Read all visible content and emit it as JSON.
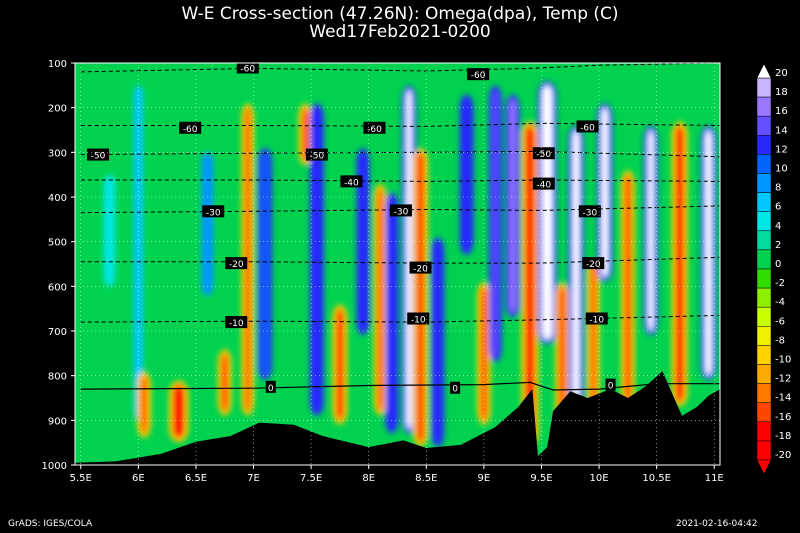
{
  "chart_data": {
    "type": "heatmap",
    "title": "W-E Cross-section (47.26N): Omega(dpa), Temp (C)",
    "subtitle": "Wed17Feb2021-0200",
    "x_ticks": [
      "5.5E",
      "6E",
      "6.5E",
      "7E",
      "7.5E",
      "8E",
      "8.5E",
      "9E",
      "9.5E",
      "10E",
      "10.5E",
      "11E"
    ],
    "x_values": [
      5.5,
      6,
      6.5,
      7,
      7.5,
      8,
      8.5,
      9,
      9.5,
      10,
      10.5,
      11
    ],
    "xlim": [
      5.45,
      11.05
    ],
    "y_ticks": [
      "100",
      "200",
      "300",
      "400",
      "500",
      "600",
      "700",
      "800",
      "900",
      "1000"
    ],
    "ylim": [
      100,
      1000
    ],
    "colorbar_levels": [
      "20",
      "18",
      "16",
      "14",
      "12",
      "10",
      "8",
      "6",
      "4",
      "2",
      "0",
      "-2",
      "-4",
      "-6",
      "-8",
      "-10",
      "-12",
      "-14",
      "-16",
      "-18",
      "-20"
    ],
    "colorbar_colors": [
      "#ffffff",
      "#c8b4ff",
      "#9b78ff",
      "#6450ff",
      "#2828ff",
      "#0064ff",
      "#0096ff",
      "#00c8ff",
      "#00e6e6",
      "#00dca0",
      "#00d250",
      "#32dc00",
      "#8cf000",
      "#c8ff00",
      "#f0f000",
      "#ffd200",
      "#ffaa00",
      "#ff7800",
      "#ff4600",
      "#ff0000",
      "#ff0000"
    ],
    "omega_bands": [
      {
        "lon": 5.75,
        "w": 0.1,
        "ptop": 350,
        "pbot": 600,
        "val": 4
      },
      {
        "lon": 6.0,
        "w": 0.08,
        "ptop": 150,
        "pbot": 900,
        "val": 6
      },
      {
        "lon": 6.05,
        "w": 0.05,
        "ptop": 800,
        "pbot": 930,
        "val": -16
      },
      {
        "lon": 6.35,
        "w": 0.1,
        "ptop": 820,
        "pbot": 940,
        "val": -18
      },
      {
        "lon": 6.6,
        "w": 0.1,
        "ptop": 300,
        "pbot": 620,
        "val": 8
      },
      {
        "lon": 6.75,
        "w": 0.05,
        "ptop": 750,
        "pbot": 880,
        "val": -18
      },
      {
        "lon": 6.95,
        "w": 0.04,
        "ptop": 200,
        "pbot": 880,
        "val": -18
      },
      {
        "lon": 7.1,
        "w": 0.05,
        "ptop": 300,
        "pbot": 800,
        "val": 10
      },
      {
        "lon": 7.45,
        "w": 0.05,
        "ptop": 200,
        "pbot": 320,
        "val": -18
      },
      {
        "lon": 7.55,
        "w": 0.05,
        "ptop": 200,
        "pbot": 880,
        "val": 12
      },
      {
        "lon": 7.75,
        "w": 0.06,
        "ptop": 650,
        "pbot": 900,
        "val": -18
      },
      {
        "lon": 7.95,
        "w": 0.04,
        "ptop": 300,
        "pbot": 700,
        "val": 12
      },
      {
        "lon": 8.1,
        "w": 0.04,
        "ptop": 380,
        "pbot": 880,
        "val": -20
      },
      {
        "lon": 8.2,
        "w": 0.04,
        "ptop": 400,
        "pbot": 920,
        "val": 12
      },
      {
        "lon": 8.35,
        "w": 0.05,
        "ptop": 160,
        "pbot": 920,
        "val": 20
      },
      {
        "lon": 8.45,
        "w": 0.06,
        "ptop": 300,
        "pbot": 950,
        "val": -20
      },
      {
        "lon": 8.6,
        "w": 0.04,
        "ptop": 500,
        "pbot": 950,
        "val": 12
      },
      {
        "lon": 8.85,
        "w": 0.05,
        "ptop": 180,
        "pbot": 520,
        "val": 12
      },
      {
        "lon": 9.0,
        "w": 0.05,
        "ptop": 600,
        "pbot": 900,
        "val": -18
      },
      {
        "lon": 9.1,
        "w": 0.04,
        "ptop": 160,
        "pbot": 760,
        "val": 14
      },
      {
        "lon": 9.25,
        "w": 0.05,
        "ptop": 180,
        "pbot": 660,
        "val": 16
      },
      {
        "lon": 9.4,
        "w": 0.08,
        "ptop": 240,
        "pbot": 950,
        "val": -20
      },
      {
        "lon": 9.55,
        "w": 0.09,
        "ptop": 150,
        "pbot": 720,
        "val": 20
      },
      {
        "lon": 9.68,
        "w": 0.05,
        "ptop": 600,
        "pbot": 920,
        "val": -20
      },
      {
        "lon": 9.8,
        "w": 0.06,
        "ptop": 250,
        "pbot": 860,
        "val": 20
      },
      {
        "lon": 9.95,
        "w": 0.04,
        "ptop": 550,
        "pbot": 880,
        "val": -18
      },
      {
        "lon": 10.05,
        "w": 0.06,
        "ptop": 200,
        "pbot": 580,
        "val": 20
      },
      {
        "lon": 10.25,
        "w": 0.05,
        "ptop": 350,
        "pbot": 860,
        "val": -20
      },
      {
        "lon": 10.45,
        "w": 0.05,
        "ptop": 250,
        "pbot": 700,
        "val": 20
      },
      {
        "lon": 10.7,
        "w": 0.07,
        "ptop": 240,
        "pbot": 860,
        "val": -20
      },
      {
        "lon": 10.95,
        "w": 0.06,
        "ptop": 250,
        "pbot": 800,
        "val": 20
      }
    ],
    "terrain": [
      [
        5.45,
        995
      ],
      [
        5.8,
        992
      ],
      [
        6.2,
        975
      ],
      [
        6.5,
        948
      ],
      [
        6.8,
        935
      ],
      [
        7.05,
        905
      ],
      [
        7.35,
        910
      ],
      [
        7.6,
        935
      ],
      [
        8.0,
        960
      ],
      [
        8.3,
        945
      ],
      [
        8.5,
        962
      ],
      [
        8.8,
        955
      ],
      [
        9.1,
        915
      ],
      [
        9.3,
        870
      ],
      [
        9.42,
        830
      ],
      [
        9.47,
        980
      ],
      [
        9.55,
        960
      ],
      [
        9.6,
        880
      ],
      [
        9.75,
        835
      ],
      [
        9.9,
        850
      ],
      [
        10.1,
        830
      ],
      [
        10.25,
        850
      ],
      [
        10.4,
        825
      ],
      [
        10.55,
        790
      ],
      [
        10.72,
        890
      ],
      [
        10.85,
        870
      ],
      [
        10.95,
        845
      ],
      [
        11.05,
        830
      ]
    ],
    "isotherms": [
      {
        "label": "-60",
        "values": [
          [
            5.5,
            120
          ],
          [
            7.0,
            112
          ],
          [
            8.5,
            118
          ],
          [
            9.4,
            112
          ],
          [
            10.0,
            105
          ],
          [
            11.05,
            100
          ]
        ]
      },
      {
        "label": "-60",
        "values": [
          [
            5.5,
            240
          ],
          [
            7.0,
            240
          ],
          [
            8.5,
            242
          ],
          [
            9.5,
            235
          ],
          [
            11.05,
            240
          ]
        ]
      },
      {
        "label": "-50",
        "values": [
          [
            5.5,
            305
          ],
          [
            7.0,
            302
          ],
          [
            8.5,
            300
          ],
          [
            9.5,
            298
          ],
          [
            11.05,
            310
          ]
        ]
      },
      {
        "label": "-40",
        "values": [
          [
            5.5,
            362
          ],
          [
            7.0,
            362
          ],
          [
            8.5,
            365
          ],
          [
            9.5,
            362
          ],
          [
            11.05,
            365
          ]
        ]
      },
      {
        "label": "-30",
        "values": [
          [
            5.5,
            435
          ],
          [
            7.0,
            432
          ],
          [
            8.5,
            428
          ],
          [
            9.5,
            430
          ],
          [
            11.05,
            420
          ]
        ]
      },
      {
        "label": "-20",
        "values": [
          [
            5.5,
            545
          ],
          [
            7.0,
            545
          ],
          [
            8.5,
            548
          ],
          [
            9.5,
            548
          ],
          [
            11.05,
            535
          ]
        ]
      },
      {
        "label": "-10",
        "values": [
          [
            5.5,
            680
          ],
          [
            7.0,
            678
          ],
          [
            8.5,
            680
          ],
          [
            9.5,
            675
          ],
          [
            11.05,
            665
          ]
        ]
      },
      {
        "label": "0",
        "values": [
          [
            5.5,
            830
          ],
          [
            7.0,
            828
          ],
          [
            8.0,
            822
          ],
          [
            9.0,
            820
          ],
          [
            9.4,
            815
          ],
          [
            9.6,
            832
          ],
          [
            10.0,
            830
          ],
          [
            10.5,
            818
          ],
          [
            11.05,
            818
          ]
        ]
      }
    ],
    "contour_labels": [
      {
        "text": "-60",
        "lon": 6.95,
        "p": 110
      },
      {
        "text": "-60",
        "lon": 8.95,
        "p": 125
      },
      {
        "text": "-60",
        "lon": 6.45,
        "p": 245
      },
      {
        "text": "-60",
        "lon": 8.05,
        "p": 245
      },
      {
        "text": "-60",
        "lon": 9.9,
        "p": 242
      },
      {
        "text": "-50",
        "lon": 5.65,
        "p": 305
      },
      {
        "text": "-50",
        "lon": 7.55,
        "p": 305
      },
      {
        "text": "-50",
        "lon": 9.52,
        "p": 302
      },
      {
        "text": "-40",
        "lon": 7.85,
        "p": 365
      },
      {
        "text": "-40",
        "lon": 9.52,
        "p": 370
      },
      {
        "text": "-30",
        "lon": 6.65,
        "p": 432
      },
      {
        "text": "-30",
        "lon": 8.28,
        "p": 430
      },
      {
        "text": "-30",
        "lon": 9.92,
        "p": 432
      },
      {
        "text": "-20",
        "lon": 6.85,
        "p": 548
      },
      {
        "text": "-20",
        "lon": 8.45,
        "p": 558
      },
      {
        "text": "-20",
        "lon": 9.95,
        "p": 548
      },
      {
        "text": "-10",
        "lon": 6.85,
        "p": 680
      },
      {
        "text": "-10",
        "lon": 8.43,
        "p": 672
      },
      {
        "text": "-10",
        "lon": 9.98,
        "p": 672
      },
      {
        "text": "0",
        "lon": 7.15,
        "p": 825
      },
      {
        "text": "0",
        "lon": 8.75,
        "p": 827
      },
      {
        "text": "0",
        "lon": 10.1,
        "p": 820
      }
    ]
  },
  "footer": {
    "left": "GrADS: IGES/COLA",
    "right": "2021-02-16-04:42"
  }
}
